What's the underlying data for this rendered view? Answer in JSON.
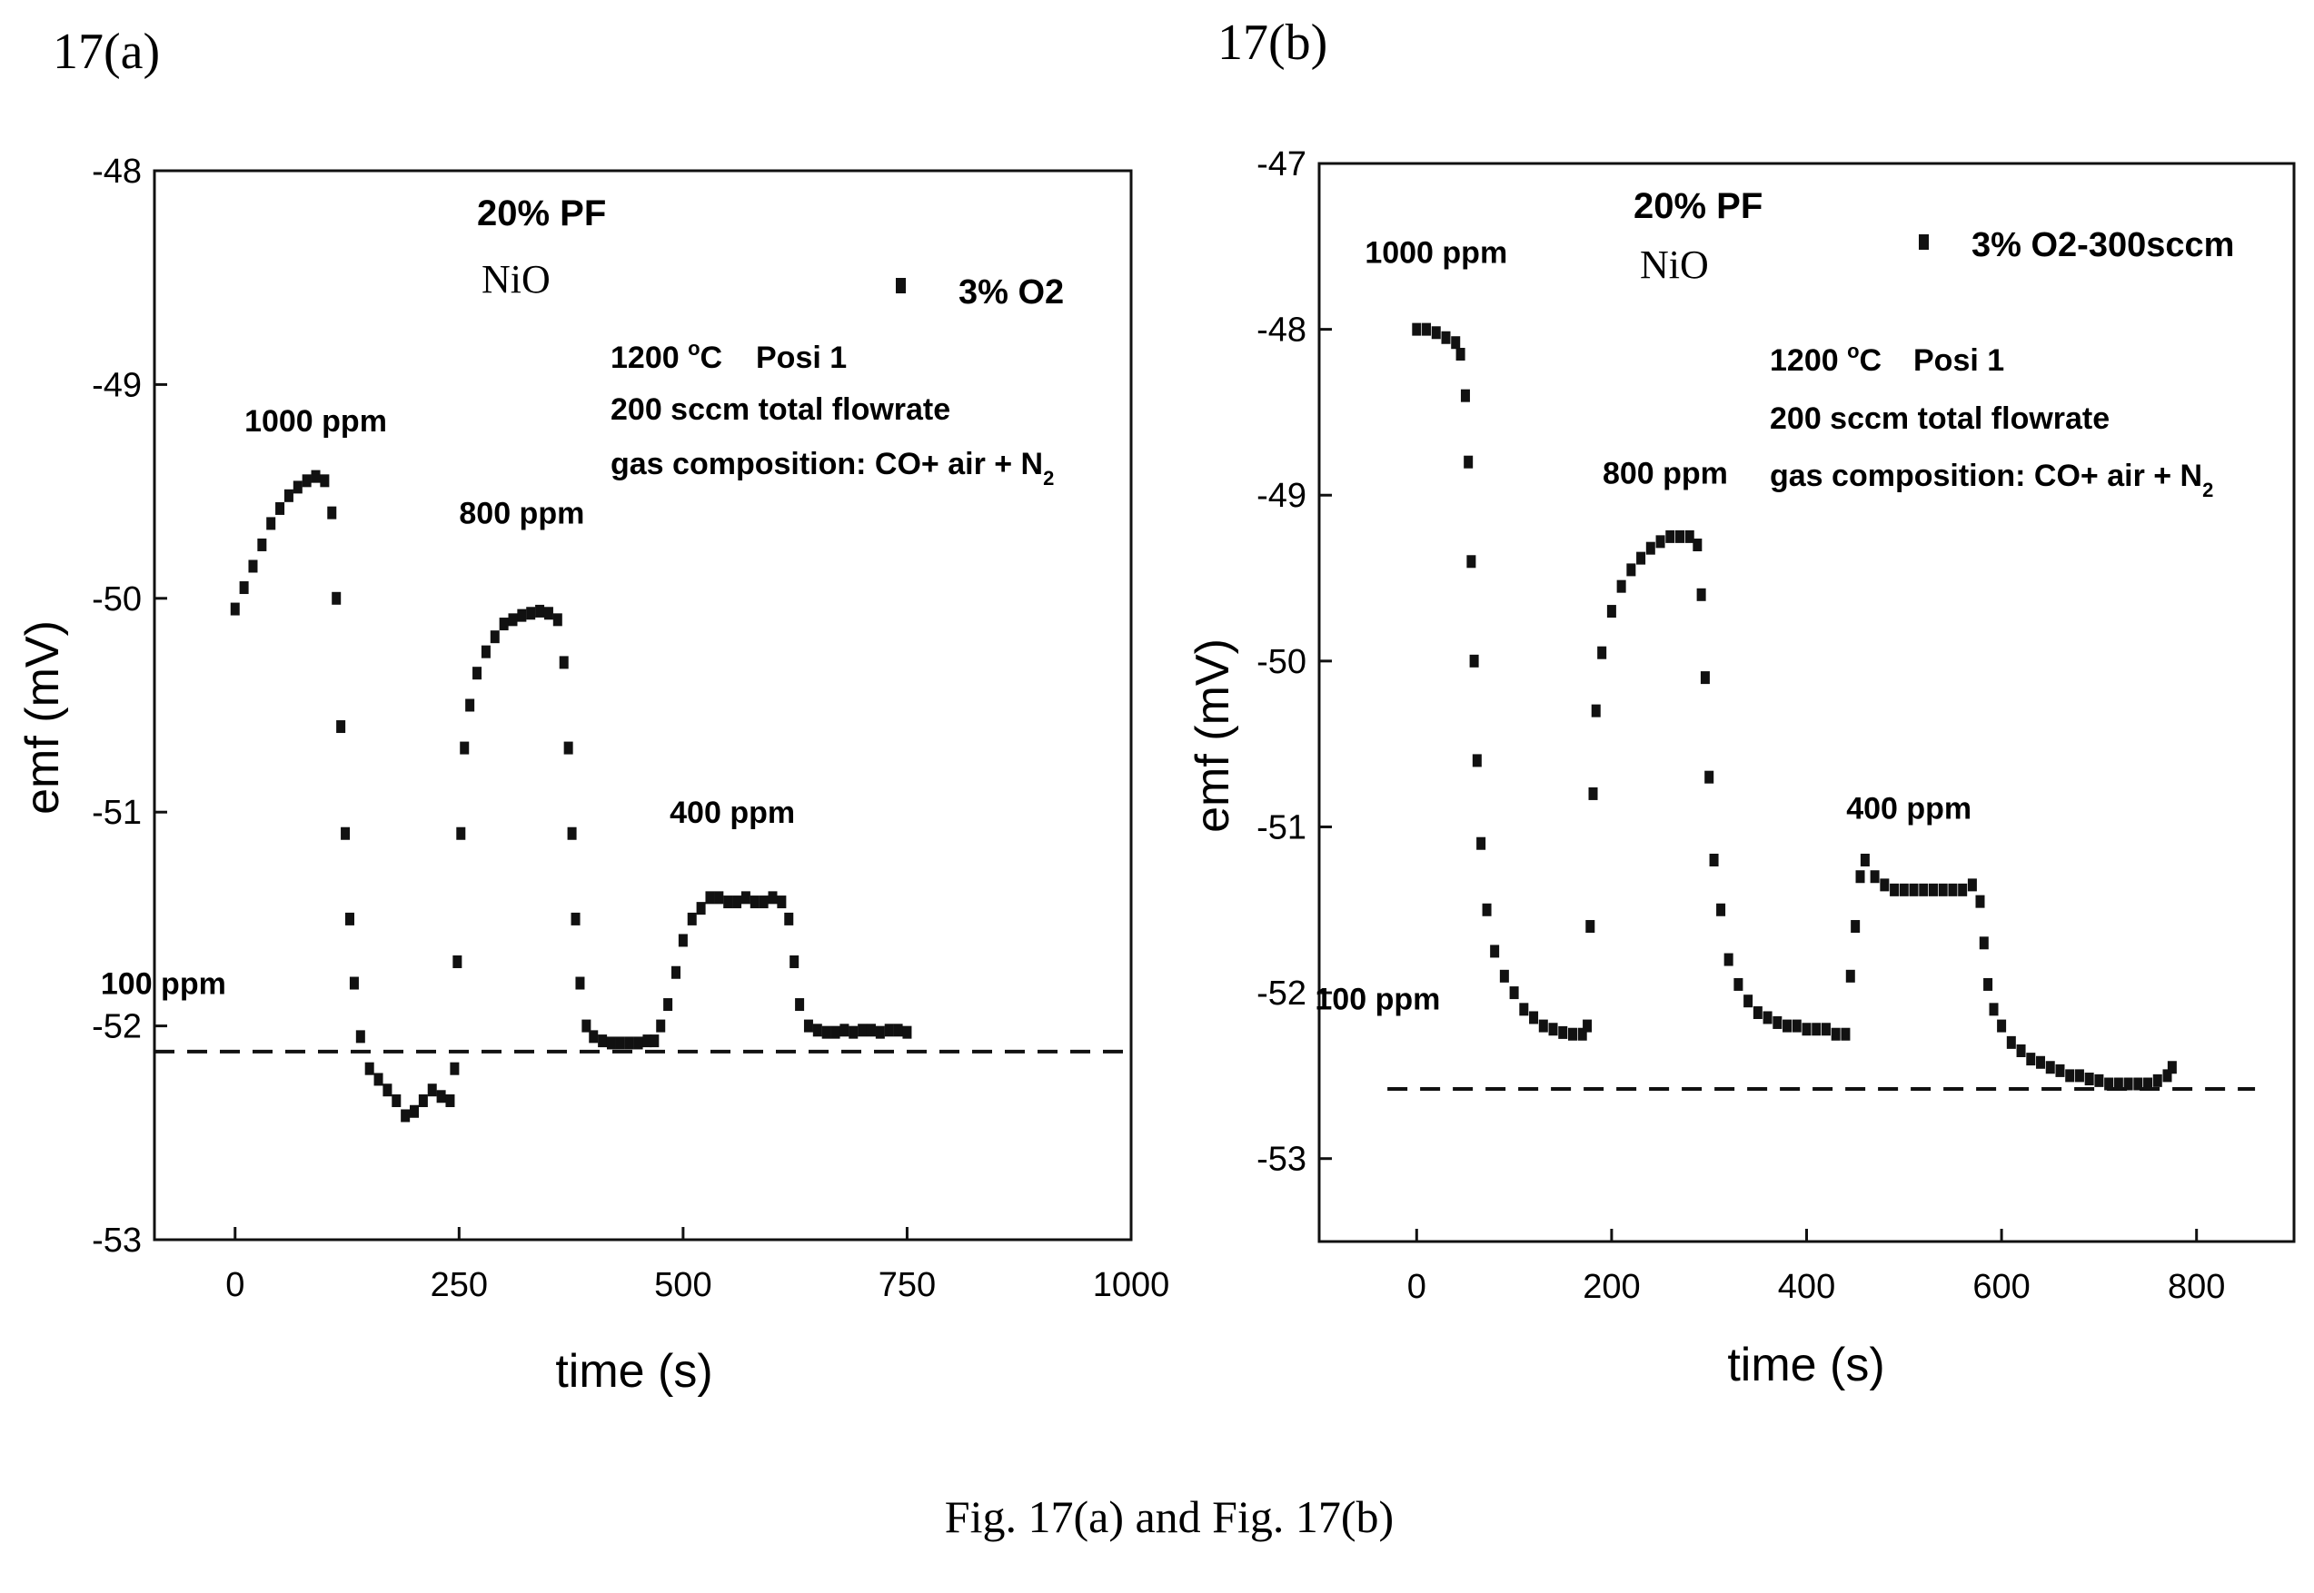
{
  "caption": "Fig. 17(a) and Fig. 17(b)",
  "chart_data": [
    {
      "panel_label": "17(a)",
      "type": "scatter",
      "xlabel": "time (s)",
      "ylabel": "emf (mV)",
      "xlim": [
        -90,
        1000
      ],
      "ylim": [
        -53,
        -48
      ],
      "xticks": [
        0,
        250,
        500,
        750,
        1000
      ],
      "yticks": [
        -53,
        -52,
        -51,
        -50,
        -49,
        -48
      ],
      "grid": false,
      "legend_position": "top-right",
      "series": [
        {
          "name": "3% O2",
          "points": [
            [
              0,
              -50.05
            ],
            [
              10,
              -49.95
            ],
            [
              20,
              -49.85
            ],
            [
              30,
              -49.75
            ],
            [
              40,
              -49.65
            ],
            [
              50,
              -49.58
            ],
            [
              60,
              -49.52
            ],
            [
              70,
              -49.48
            ],
            [
              80,
              -49.45
            ],
            [
              90,
              -49.43
            ],
            [
              100,
              -49.45
            ],
            [
              108,
              -49.6
            ],
            [
              113,
              -50.0
            ],
            [
              118,
              -50.6
            ],
            [
              123,
              -51.1
            ],
            [
              128,
              -51.5
            ],
            [
              133,
              -51.8
            ],
            [
              140,
              -52.05
            ],
            [
              150,
              -52.2
            ],
            [
              160,
              -52.25
            ],
            [
              170,
              -52.3
            ],
            [
              180,
              -52.35
            ],
            [
              190,
              -52.42
            ],
            [
              200,
              -52.4
            ],
            [
              210,
              -52.35
            ],
            [
              220,
              -52.3
            ],
            [
              230,
              -52.33
            ],
            [
              240,
              -52.35
            ],
            [
              245,
              -52.2
            ],
            [
              248,
              -51.7
            ],
            [
              252,
              -51.1
            ],
            [
              256,
              -50.7
            ],
            [
              262,
              -50.5
            ],
            [
              270,
              -50.35
            ],
            [
              280,
              -50.25
            ],
            [
              290,
              -50.18
            ],
            [
              300,
              -50.12
            ],
            [
              310,
              -50.1
            ],
            [
              320,
              -50.08
            ],
            [
              330,
              -50.07
            ],
            [
              340,
              -50.06
            ],
            [
              350,
              -50.07
            ],
            [
              360,
              -50.1
            ],
            [
              367,
              -50.3
            ],
            [
              372,
              -50.7
            ],
            [
              376,
              -51.1
            ],
            [
              380,
              -51.5
            ],
            [
              385,
              -51.8
            ],
            [
              392,
              -52.0
            ],
            [
              400,
              -52.05
            ],
            [
              410,
              -52.07
            ],
            [
              420,
              -52.08
            ],
            [
              430,
              -52.08
            ],
            [
              440,
              -52.08
            ],
            [
              450,
              -52.08
            ],
            [
              460,
              -52.07
            ],
            [
              468,
              -52.07
            ],
            [
              475,
              -52.0
            ],
            [
              483,
              -51.9
            ],
            [
              492,
              -51.75
            ],
            [
              500,
              -51.6
            ],
            [
              510,
              -51.5
            ],
            [
              520,
              -51.45
            ],
            [
              530,
              -51.4
            ],
            [
              540,
              -51.4
            ],
            [
              550,
              -51.42
            ],
            [
              560,
              -51.42
            ],
            [
              570,
              -51.4
            ],
            [
              580,
              -51.42
            ],
            [
              590,
              -51.42
            ],
            [
              600,
              -51.4
            ],
            [
              610,
              -51.42
            ],
            [
              618,
              -51.5
            ],
            [
              624,
              -51.7
            ],
            [
              630,
              -51.9
            ],
            [
              640,
              -52.0
            ],
            [
              650,
              -52.02
            ],
            [
              660,
              -52.03
            ],
            [
              670,
              -52.03
            ],
            [
              680,
              -52.02
            ],
            [
              690,
              -52.03
            ],
            [
              700,
              -52.02
            ],
            [
              710,
              -52.02
            ],
            [
              720,
              -52.03
            ],
            [
              730,
              -52.02
            ],
            [
              740,
              -52.02
            ],
            [
              750,
              -52.03
            ]
          ]
        }
      ],
      "reference_line": {
        "y": -52.12,
        "x_range": [
          -90,
          1000
        ]
      },
      "annotations": [
        {
          "text": "1000 ppm",
          "x": 90,
          "y": -49.22
        },
        {
          "text": "800 ppm",
          "x": 320,
          "y": -49.65
        },
        {
          "text": "400 ppm",
          "x": 555,
          "y": -51.05
        },
        {
          "text": "100 ppm",
          "x": -80,
          "y": -51.85
        }
      ],
      "info": {
        "title": "20% PF",
        "material": "NiO",
        "temperature": "1200 ",
        "temp_unit": "C",
        "temp_degree": "o",
        "position": "Posi 1",
        "flow": "200 sccm  total flowrate",
        "gas_prefix": "gas composition:  CO+ air + N",
        "gas_sub": "2"
      }
    },
    {
      "panel_label": "17(b)",
      "type": "scatter",
      "xlabel": "time (s)",
      "ylabel": "emf (mV)",
      "xlim": [
        -100,
        900
      ],
      "ylim": [
        -53.5,
        -47
      ],
      "xticks": [
        0,
        200,
        400,
        600,
        800
      ],
      "yticks": [
        -53,
        -52,
        -51,
        -50,
        -49,
        -48,
        -47
      ],
      "grid": false,
      "legend_position": "top-right",
      "series": [
        {
          "name": "3% O2-300sccm",
          "points": [
            [
              0,
              -48.0
            ],
            [
              10,
              -48.0
            ],
            [
              20,
              -48.02
            ],
            [
              30,
              -48.05
            ],
            [
              40,
              -48.08
            ],
            [
              45,
              -48.15
            ],
            [
              50,
              -48.4
            ],
            [
              53,
              -48.8
            ],
            [
              56,
              -49.4
            ],
            [
              59,
              -50.0
            ],
            [
              62,
              -50.6
            ],
            [
              66,
              -51.1
            ],
            [
              72,
              -51.5
            ],
            [
              80,
              -51.75
            ],
            [
              90,
              -51.9
            ],
            [
              100,
              -52.0
            ],
            [
              110,
              -52.1
            ],
            [
              120,
              -52.15
            ],
            [
              130,
              -52.2
            ],
            [
              140,
              -52.22
            ],
            [
              150,
              -52.24
            ],
            [
              160,
              -52.25
            ],
            [
              170,
              -52.25
            ],
            [
              175,
              -52.2
            ],
            [
              178,
              -51.6
            ],
            [
              181,
              -50.8
            ],
            [
              184,
              -50.3
            ],
            [
              190,
              -49.95
            ],
            [
              200,
              -49.7
            ],
            [
              210,
              -49.55
            ],
            [
              220,
              -49.45
            ],
            [
              230,
              -49.38
            ],
            [
              240,
              -49.32
            ],
            [
              250,
              -49.28
            ],
            [
              260,
              -49.25
            ],
            [
              270,
              -49.25
            ],
            [
              280,
              -49.25
            ],
            [
              288,
              -49.3
            ],
            [
              292,
              -49.6
            ],
            [
              296,
              -50.1
            ],
            [
              300,
              -50.7
            ],
            [
              305,
              -51.2
            ],
            [
              312,
              -51.5
            ],
            [
              320,
              -51.8
            ],
            [
              330,
              -51.95
            ],
            [
              340,
              -52.05
            ],
            [
              350,
              -52.12
            ],
            [
              360,
              -52.15
            ],
            [
              370,
              -52.18
            ],
            [
              380,
              -52.2
            ],
            [
              390,
              -52.2
            ],
            [
              400,
              -52.22
            ],
            [
              410,
              -52.22
            ],
            [
              420,
              -52.22
            ],
            [
              430,
              -52.25
            ],
            [
              440,
              -52.25
            ],
            [
              445,
              -51.9
            ],
            [
              450,
              -51.6
            ],
            [
              455,
              -51.3
            ],
            [
              460,
              -51.2
            ],
            [
              470,
              -51.3
            ],
            [
              480,
              -51.35
            ],
            [
              490,
              -51.38
            ],
            [
              500,
              -51.38
            ],
            [
              510,
              -51.38
            ],
            [
              520,
              -51.38
            ],
            [
              530,
              -51.38
            ],
            [
              540,
              -51.38
            ],
            [
              550,
              -51.38
            ],
            [
              560,
              -51.38
            ],
            [
              570,
              -51.35
            ],
            [
              578,
              -51.45
            ],
            [
              582,
              -51.7
            ],
            [
              586,
              -51.95
            ],
            [
              592,
              -52.1
            ],
            [
              600,
              -52.2
            ],
            [
              610,
              -52.3
            ],
            [
              620,
              -52.35
            ],
            [
              630,
              -52.4
            ],
            [
              640,
              -52.42
            ],
            [
              650,
              -52.45
            ],
            [
              660,
              -52.47
            ],
            [
              670,
              -52.5
            ],
            [
              680,
              -52.5
            ],
            [
              690,
              -52.52
            ],
            [
              700,
              -52.53
            ],
            [
              710,
              -52.55
            ],
            [
              720,
              -52.55
            ],
            [
              730,
              -52.55
            ],
            [
              740,
              -52.55
            ],
            [
              750,
              -52.55
            ],
            [
              760,
              -52.53
            ],
            [
              770,
              -52.5
            ],
            [
              775,
              -52.45
            ]
          ]
        }
      ],
      "reference_line": {
        "y": -52.58,
        "x_range": [
          -30,
          860
        ]
      },
      "annotations": [
        {
          "text": "1000 ppm",
          "x": 20,
          "y": -47.6
        },
        {
          "text": "800 ppm",
          "x": 255,
          "y": -48.93
        },
        {
          "text": "400 ppm",
          "x": 505,
          "y": -50.95
        },
        {
          "text": "100 ppm",
          "x": -40,
          "y": -52.1
        }
      ],
      "info": {
        "title": "20% PF",
        "material": "NiO",
        "temperature": "1200 ",
        "temp_unit": "C",
        "temp_degree": "o",
        "position": "Posi 1",
        "flow": "200 sccm  total flowrate",
        "gas_prefix": "gas composition:  CO+ air + N",
        "gas_sub": "2"
      }
    }
  ]
}
